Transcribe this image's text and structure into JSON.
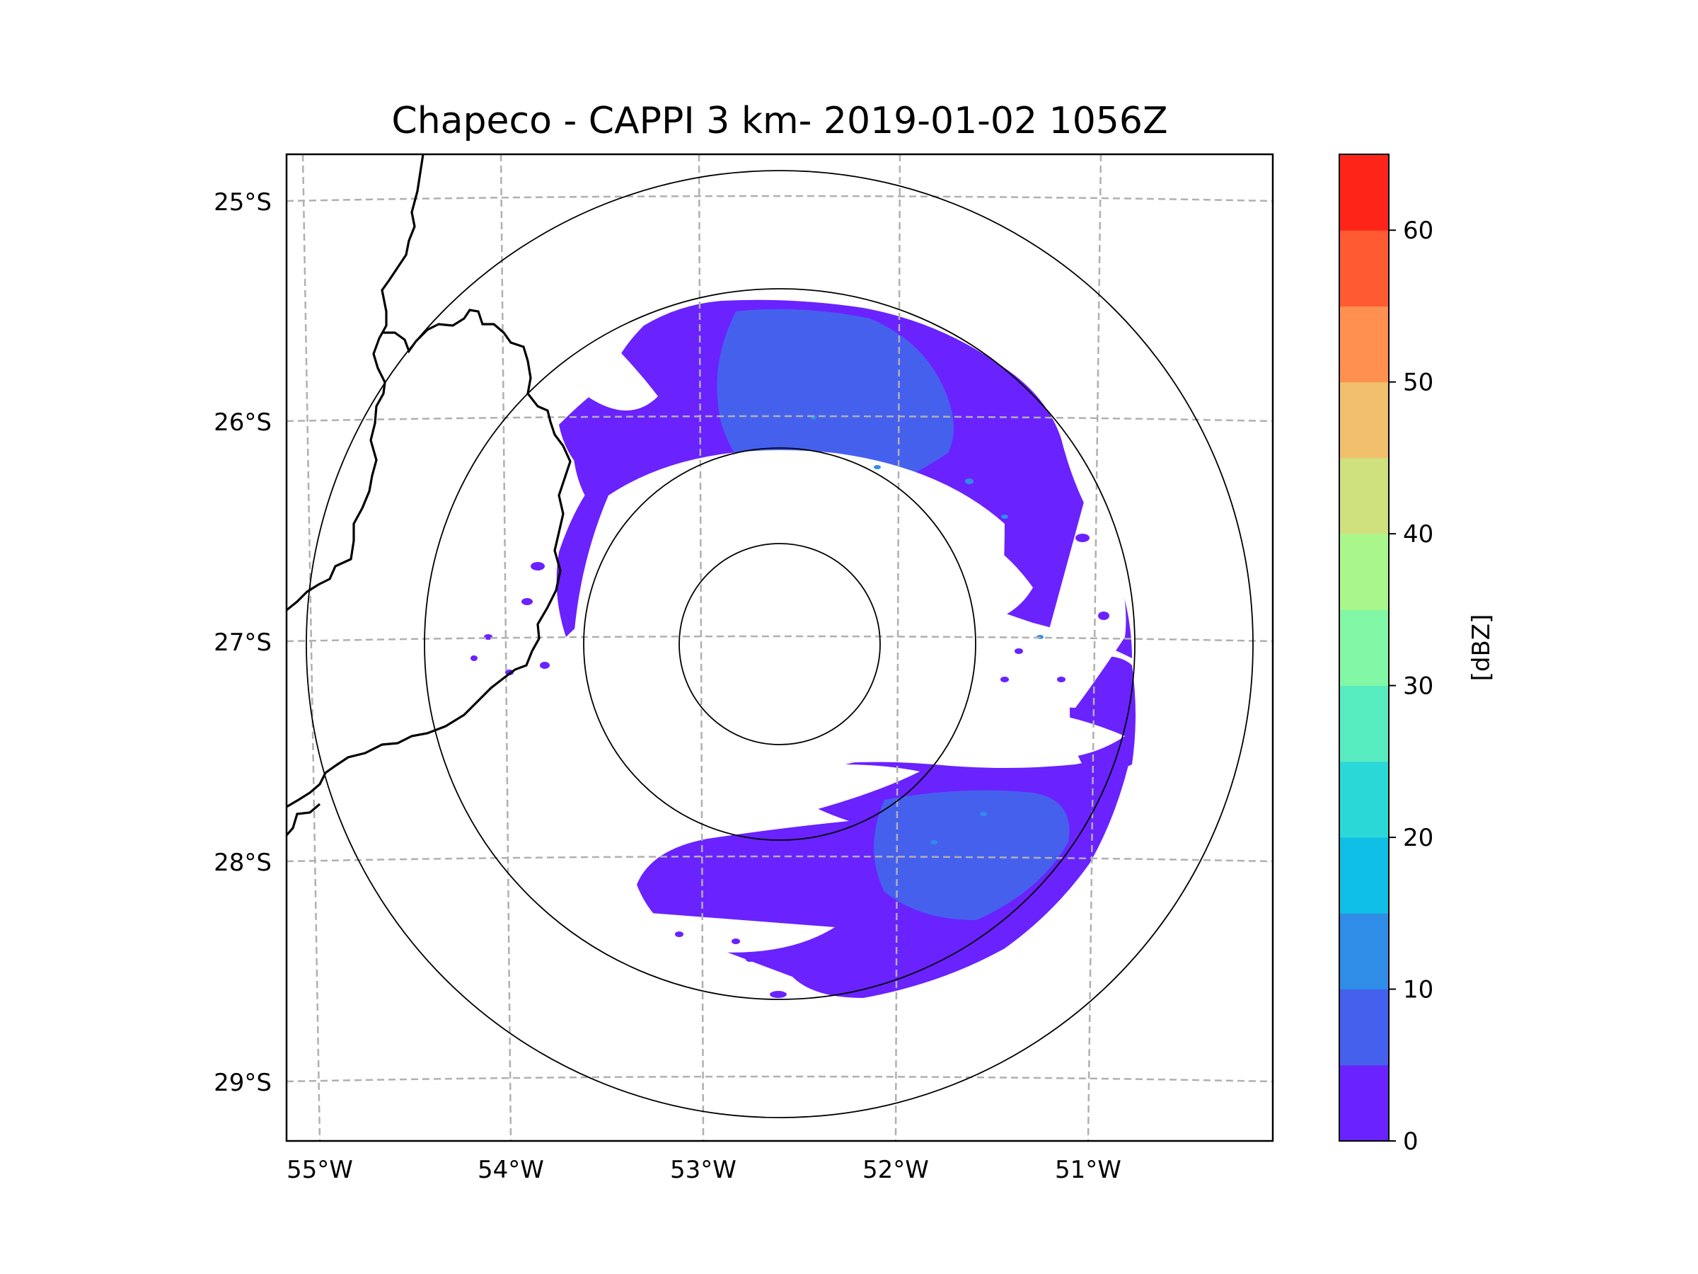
{
  "map": {
    "title": "Chapeco - CAPPI 3 km- 2019-01-02 1056Z",
    "lat_labels": [
      "25°S",
      "26°S",
      "27°S",
      "28°S",
      "29°S"
    ],
    "lon_labels": [
      "55°W",
      "54°W",
      "53°W",
      "52°W",
      "51°W"
    ],
    "range_ring_count": 4,
    "gridline_style": "dashed gray"
  },
  "colorbar": {
    "label": "[dBZ]",
    "min": 0,
    "max": 65,
    "step": 5,
    "tick_labels": [
      "0",
      "10",
      "20",
      "30",
      "40",
      "50",
      "60"
    ],
    "colors": [
      "#6a22ff",
      "#4660ee",
      "#2f8de8",
      "#0fbfe6",
      "#2bd8d8",
      "#56ecc0",
      "#82f7a6",
      "#a9f78a",
      "#cfe07e",
      "#f1c06c",
      "#ff9050",
      "#ff5a32",
      "#ff2418"
    ]
  },
  "colors": {
    "echo_low": "#6a22ff",
    "echo_mid": "#4660ee",
    "echo_speck": "#2f8de8",
    "border": "#000000",
    "grid": "#b0b0b0"
  }
}
